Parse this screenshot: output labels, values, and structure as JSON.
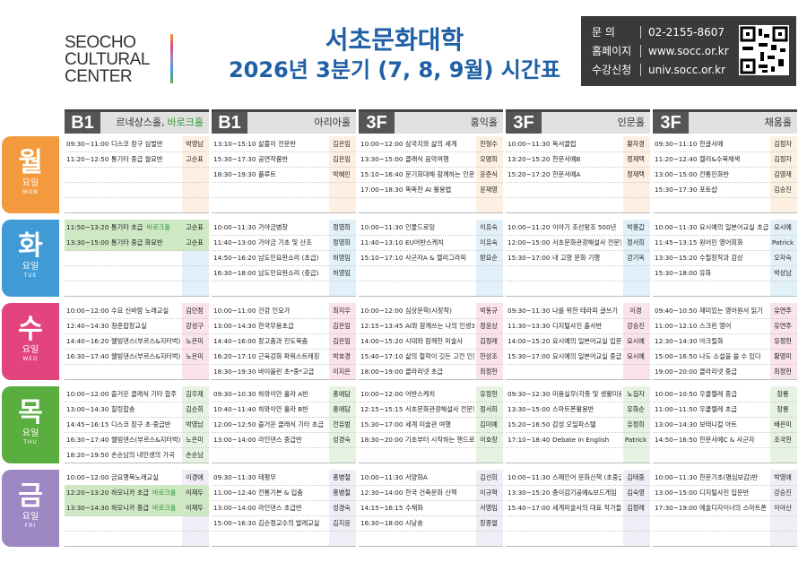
{
  "header": {
    "logo": [
      "SEOCHO",
      "CULTURAL",
      "CENTER"
    ],
    "title": "서초문화대학",
    "subtitle": "2026년 3분기 (7, 8, 9월) 시간표",
    "contact": [
      {
        "label": "문 의",
        "value": "02-2155-8607"
      },
      {
        "label": "홈페이지",
        "value": "www.socc.or.kr"
      },
      {
        "label": "수강신청",
        "value": "univ.socc.or.kr"
      }
    ]
  },
  "rooms": [
    {
      "floor": "B1",
      "name": "르네상스홀,",
      "extra": "바로크홀",
      "extra_color": "#2f9a3a"
    },
    {
      "floor": "B1",
      "name": "아리아홀"
    },
    {
      "floor": "3F",
      "name": "홍익홀"
    },
    {
      "floor": "3F",
      "name": "인문홀"
    },
    {
      "floor": "3F",
      "name": "채움홀"
    }
  ],
  "highlight_color": "#cfe8c4",
  "days": [
    {
      "name": "월",
      "sub": "요일",
      "en": "MON",
      "color": "#f29a3d",
      "sessions": [
        [
          {
            "time": "09:30~11:00",
            "title": "디스코 장구 심벌반",
            "teacher": "박영남"
          },
          {
            "time": "11:20~12:50",
            "title": "통기타 중급 월요반",
            "teacher": "고순표"
          }
        ],
        [
          {
            "time": "13:10~15:10",
            "title": "살풀이 전문반",
            "teacher": "김은임"
          },
          {
            "time": "15:30~17:30",
            "title": "공연작품반",
            "teacher": "김은임"
          },
          {
            "time": "18:30~19:30",
            "title": "플루트",
            "teacher": "박혜민"
          }
        ],
        [
          {
            "time": "10:00~12:00",
            "title": "삼국지와 삶의 세계",
            "teacher": "한형수"
          },
          {
            "time": "13:30~15:00",
            "title": "클래식 음악여행",
            "teacher": "오명희"
          },
          {
            "time": "15:10~16:40",
            "title": "문기회대해 함께하는 인문학여행",
            "teacher": "윤준식"
          },
          {
            "time": "17:00~18:30",
            "title": "똑똑한 AI 활용법",
            "teacher": "윤재영"
          }
        ],
        [
          {
            "time": "10:00~11:30",
            "title": "독서클럽",
            "teacher": "황자경"
          },
          {
            "time": "13:20~15:20",
            "title": "한문서예B",
            "teacher": "정재택"
          },
          {
            "time": "15:20~17:20",
            "title": "한문서예A",
            "teacher": "정재택"
          }
        ],
        [
          {
            "time": "09:30~11:10",
            "title": "한글서예",
            "teacher": "김정자"
          },
          {
            "time": "11:20~12:40",
            "title": "캘리&수묵채색",
            "teacher": "김정자"
          },
          {
            "time": "13:00~15:00",
            "title": "전통민화반",
            "teacher": "김영재"
          },
          {
            "time": "15:30~17:30",
            "title": "포토샵",
            "teacher": "김승진"
          }
        ]
      ]
    },
    {
      "name": "화",
      "sub": "요일",
      "en": "TUE",
      "color": "#3f9ad6",
      "sessions": [
        [
          {
            "time": "11:50~13:20",
            "title": "통기타 초급",
            "tag": "바로크홀",
            "teacher": "고순표",
            "highlight": true
          },
          {
            "time": "13:30~15:00",
            "title": "통기타 중급 화요반",
            "teacher": "고순표",
            "highlight": true
          }
        ],
        [
          {
            "time": "10:00~11:30",
            "title": "가야금병창",
            "teacher": "정영희"
          },
          {
            "time": "11:40~13:00",
            "title": "가야금 기초 및 산조",
            "teacher": "정영희"
          },
          {
            "time": "14:50~16:20",
            "title": "남도민요판소리 (초급)",
            "teacher": "허영임"
          },
          {
            "time": "16:30~18:00",
            "title": "남도민요판소리 (중급)",
            "teacher": "허영임"
          }
        ],
        [
          {
            "time": "10:00~11:30",
            "title": "인물드로잉",
            "teacher": "이유숙"
          },
          {
            "time": "11:40~13:10",
            "title": "EU어반스케치",
            "teacher": "이유숙"
          },
          {
            "time": "15:10~17:10",
            "title": "사군자A & 캘리그라피",
            "teacher": "방요순"
          }
        ],
        [
          {
            "time": "10:00~11:20",
            "title": "이야기 조선왕조 500년",
            "teacher": "박홍갑"
          },
          {
            "time": "12:00~15:00",
            "title": "서초문화관광해설사 전문양성과정",
            "teacher": "정서희"
          },
          {
            "time": "15:30~17:00",
            "title": "내 고향 문화 기행",
            "teacher": "강기옥"
          }
        ],
        [
          {
            "time": "10:00~11:30",
            "title": "요시예의 일본어교실 초급",
            "teacher": "요시예"
          },
          {
            "time": "11:45~13:15",
            "title": "원어민 영어회화",
            "teacher": "Patrick"
          },
          {
            "time": "13:30~15:20",
            "title": "수필창작과 감상",
            "teacher": "오자숙"
          },
          {
            "time": "15:30~18:00",
            "title": "유화",
            "teacher": "박상남"
          }
        ]
      ]
    },
    {
      "name": "수",
      "sub": "요일",
      "en": "WED",
      "color": "#e2457d",
      "sessions": [
        [
          {
            "time": "10:00~12:00",
            "title": "수요 신바람 노래교실",
            "teacher": "김민정"
          },
          {
            "time": "12:40~14:30",
            "title": "청춘합창교실",
            "teacher": "강성구"
          },
          {
            "time": "14:40~16:20",
            "title": "웰빙댄스(부르스&지터벅) 초급",
            "teacher": "노은미"
          },
          {
            "time": "16:30~17:40",
            "title": "웰빙댄스(부르스&지터벅) 중급",
            "teacher": "노은미"
          }
        ],
        [
          {
            "time": "10:00~11:00",
            "title": "건강 인요가",
            "teacher": "최지우"
          },
          {
            "time": "13:00~14:30",
            "title": "한국무용초급",
            "teacher": "김은임"
          },
          {
            "time": "14:40~16:00",
            "title": "장고춤과 진도북춤",
            "teacher": "김은임"
          },
          {
            "time": "16:20~17:10",
            "title": "근육강화 파워스트레칭",
            "teacher": "박호경"
          },
          {
            "time": "18:30~19:30",
            "title": "바이올린 초*중*고급",
            "teacher": "이지은"
          }
        ],
        [
          {
            "time": "10:00~12:00",
            "title": "심상문학(시창작)",
            "teacher": "박동규"
          },
          {
            "time": "12:15~13:45",
            "title": "AI와 함께쓰는 나의 인생3막",
            "teacher": "정윤상"
          },
          {
            "time": "14:00~15:20",
            "title": "시대와 함께한 미술사",
            "teacher": "김정래"
          },
          {
            "time": "15:40~17:10",
            "title": "삶의 철학이 깃든 고전 인문학",
            "teacher": "한상조"
          },
          {
            "time": "18:00~19:00",
            "title": "클라리넷 초급",
            "teacher": "최정헌"
          }
        ],
        [
          {
            "time": "09:30~11:30",
            "title": "나를 위한 테라피 글쓰기",
            "teacher": "이경"
          },
          {
            "time": "11:30~13:30",
            "title": "디지털사진 출사반",
            "teacher": "강승진"
          },
          {
            "time": "14:00~15:20",
            "title": "요시예의 일본어교실 입문",
            "teacher": "요시예"
          },
          {
            "time": "15:30~17:00",
            "title": "요시예의 일본어교실 중급",
            "teacher": "요시예"
          }
        ],
        [
          {
            "time": "09:40~10:50",
            "title": "재미있는 영어원서 읽기",
            "teacher": "유연주"
          },
          {
            "time": "11:00~12:10",
            "title": "스크린 영어",
            "teacher": "유연주"
          },
          {
            "time": "12:30~14:30",
            "title": "아크릴화",
            "teacher": "유정현"
          },
          {
            "time": "15:00~16:50",
            "title": "나도 소설을 쓸 수 있다",
            "teacher": "황영미"
          },
          {
            "time": "19:00~20:00",
            "title": "클라리넷 중급",
            "teacher": "최정헌"
          }
        ]
      ]
    },
    {
      "name": "목",
      "sub": "요일",
      "en": "THU",
      "color": "#5aad3f",
      "sessions": [
        [
          {
            "time": "10:00~12:00",
            "title": "즐거운 클래식 기타 합주",
            "teacher": "김우제"
          },
          {
            "time": "13:00~14:30",
            "title": "힐링합송",
            "teacher": "김순희"
          },
          {
            "time": "14:45~16:15",
            "title": "디스코 장구 초·중급반",
            "teacher": "박영남"
          },
          {
            "time": "16:30~17:40",
            "title": "웰빙댄스(부르스&지터벅) 초급",
            "teacher": "노은미"
          },
          {
            "time": "18:20~19:50",
            "title": "손순남의 내인생의 가곡",
            "teacher": "손순남"
          }
        ],
        [
          {
            "time": "09:30~10:30",
            "title": "하와이안 훌라 A반",
            "teacher": "홍애담"
          },
          {
            "time": "10:40~11:40",
            "title": "하와이안 훌라 B반",
            "teacher": "홍애담"
          },
          {
            "time": "12:00~12:50",
            "title": "즐거운 클래식 기타 초급",
            "teacher": "전유범"
          },
          {
            "time": "13:00~14:00",
            "title": "라인댄스 중급반",
            "teacher": "성경숙"
          }
        ],
        [
          {
            "time": "10:00~12:00",
            "title": "어반스케치",
            "teacher": "유정현"
          },
          {
            "time": "12:15~15:15",
            "title": "서초문화관광해설사 전문양성과정",
            "teacher": "정서희"
          },
          {
            "time": "15:30~17:00",
            "title": "세계 미술관 여행",
            "teacher": "김미예"
          },
          {
            "time": "18:30~20:00",
            "title": "기초부터 시작하는 핸드로잉",
            "teacher": "이호창"
          }
        ],
        [
          {
            "time": "09:30~12:30",
            "title": "미용실무(각종 및 생활미용)",
            "teacher": "노길자"
          },
          {
            "time": "13:30~15:00",
            "title": "스마트폰활용반",
            "teacher": "유화순"
          },
          {
            "time": "15:20~16:50",
            "title": "감성 오일파스텔",
            "teacher": "유정희"
          },
          {
            "time": "17:10~18:40",
            "title": "Debate in English",
            "teacher": "Patrick"
          }
        ],
        [
          {
            "time": "10:00~10:50",
            "title": "우쿨렐레 중급",
            "teacher": "장룡"
          },
          {
            "time": "11:00~11:50",
            "title": "우쿨렐레 초급",
            "teacher": "장룡"
          },
          {
            "time": "13:00~14:30",
            "title": "보태니컬 아트",
            "teacher": "배은미"
          },
          {
            "time": "14:50~16:50",
            "title": "한문서예C & 사군자",
            "teacher": "조국현"
          }
        ]
      ]
    },
    {
      "name": "금",
      "sub": "요일",
      "en": "FRI",
      "color": "#9d88c4",
      "sessions": [
        [
          {
            "time": "10:00~12:00",
            "title": "금요행복노래교실",
            "teacher": "이경애"
          },
          {
            "time": "12:20~13:20",
            "title": "하모니카 초급",
            "tag": "바로크홀",
            "teacher": "이재두",
            "highlight": true
          },
          {
            "time": "13:30~14:30",
            "title": "하모니카 중급",
            "tag": "바로크홀",
            "teacher": "이재두",
            "highlight": true
          }
        ],
        [
          {
            "time": "09:30~11:30",
            "title": "태평무",
            "teacher": "홍병철"
          },
          {
            "time": "11:00~12:40",
            "title": "전통기본 & 입춤",
            "teacher": "홍병철"
          },
          {
            "time": "13:00~14:00",
            "title": "라인댄스 초급반",
            "teacher": "성경숙"
          },
          {
            "time": "15:00~16:30",
            "title": "김순정교수의 발레교실",
            "teacher": "김지윤"
          }
        ],
        [
          {
            "time": "10:00~11:30",
            "title": "서양화A",
            "teacher": "김선희"
          },
          {
            "time": "12:30~14:00",
            "title": "한국 건축문화 산책",
            "teacher": "이규혁"
          },
          {
            "time": "14:15~16:15",
            "title": "수채화",
            "teacher": "서영임"
          },
          {
            "time": "16:30~18:00",
            "title": "시낭송",
            "teacher": "장종열"
          }
        ],
        [
          {
            "time": "10:00~11:30",
            "title": "스페인어 문화산책 (초중급)",
            "teacher": "김태중"
          },
          {
            "time": "13:30~15:20",
            "title": "종이감기공예&보드게임",
            "teacher": "김숙영"
          },
          {
            "time": "15:40~17:00",
            "title": "세계미술사의 대표 작가들",
            "teacher": "김정래"
          }
        ],
        [
          {
            "time": "10:00~11:30",
            "title": "한문기초(명심보감)반",
            "teacher": "박영애"
          },
          {
            "time": "13:00~15:00",
            "title": "디지털사진 입문반",
            "teacher": "강승진"
          },
          {
            "time": "17:30~19:00",
            "title": "예술디자이너의 스마트폰 활영반",
            "teacher": "이아산"
          }
        ]
      ]
    }
  ]
}
